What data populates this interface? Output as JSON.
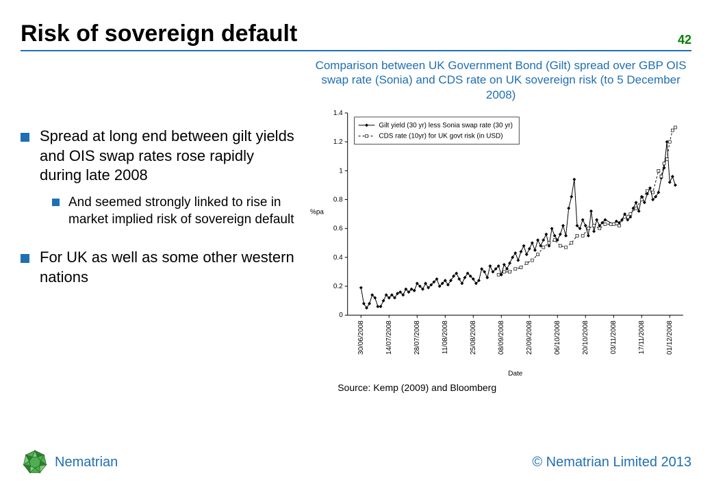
{
  "page": {
    "title": "Risk of sovereign default",
    "page_number": "42",
    "accent_color": "#1f6fb2",
    "pagenum_color": "#008000",
    "rule_color": "#1f6fb2",
    "brand_name": "Nematrian",
    "brand_color": "#1f6fb2",
    "copyright": "© Nematrian Limited 2013",
    "copyright_color": "#1f6fb2",
    "logo_colors": {
      "light": "#7fc97f",
      "mid": "#4caf50",
      "dark": "#2e7d32",
      "edge": "#1b5e20"
    }
  },
  "bullets": [
    {
      "text": "Spread at long end between gilt yields and OIS swap rates rose rapidly during late 2008",
      "sub": [
        {
          "text": "And seemed strongly linked to rise in market implied risk of sovereign default"
        }
      ]
    },
    {
      "text": "For UK as well as some other western nations",
      "sub": []
    }
  ],
  "chart": {
    "type": "line",
    "title": "Comparison between UK Government Bond (Gilt) spread over GBP OIS swap rate (Sonia) and CDS rate on UK sovereign risk (to 5 December 2008)",
    "title_color": "#1f6fb2",
    "title_fontsize": 17,
    "xlabel": "Date",
    "ylabel": "%pa",
    "label_fontsize": 10,
    "background_color": "#ffffff",
    "axis_color": "#000000",
    "ylim": [
      0,
      1.4
    ],
    "ytick_step": 0.2,
    "yticks": [
      0,
      0.2,
      0.4,
      0.6,
      0.8,
      1,
      1.2,
      1.4
    ],
    "x_categories": [
      "30/06/2008",
      "14/07/2008",
      "28/07/2008",
      "11/08/2008",
      "25/08/2008",
      "08/09/2008",
      "22/09/2008",
      "06/10/2008",
      "20/10/2008",
      "03/11/2008",
      "17/11/2008",
      "01/12/2008"
    ],
    "legend": {
      "position": "top-left-inside",
      "border_color": "#000000",
      "bg_color": "#ffffff"
    },
    "series": [
      {
        "name": "Gilt yield (30 yr) less Sonia swap rate (30 yr)",
        "color": "#000000",
        "marker": "diamond",
        "marker_fill": "#000000",
        "marker_size": 4,
        "line_style": "solid",
        "line_width": 1,
        "data": [
          [
            0.0,
            0.19
          ],
          [
            0.1,
            0.08
          ],
          [
            0.2,
            0.05
          ],
          [
            0.3,
            0.08
          ],
          [
            0.4,
            0.14
          ],
          [
            0.5,
            0.12
          ],
          [
            0.6,
            0.06
          ],
          [
            0.7,
            0.06
          ],
          [
            0.8,
            0.1
          ],
          [
            0.9,
            0.14
          ],
          [
            1.0,
            0.12
          ],
          [
            1.1,
            0.14
          ],
          [
            1.2,
            0.12
          ],
          [
            1.3,
            0.15
          ],
          [
            1.4,
            0.16
          ],
          [
            1.5,
            0.14
          ],
          [
            1.6,
            0.18
          ],
          [
            1.7,
            0.16
          ],
          [
            1.8,
            0.18
          ],
          [
            1.9,
            0.17
          ],
          [
            2.0,
            0.22
          ],
          [
            2.1,
            0.2
          ],
          [
            2.2,
            0.18
          ],
          [
            2.3,
            0.22
          ],
          [
            2.4,
            0.19
          ],
          [
            2.5,
            0.21
          ],
          [
            2.6,
            0.23
          ],
          [
            2.7,
            0.25
          ],
          [
            2.8,
            0.2
          ],
          [
            2.9,
            0.22
          ],
          [
            3.0,
            0.24
          ],
          [
            3.1,
            0.21
          ],
          [
            3.2,
            0.24
          ],
          [
            3.3,
            0.27
          ],
          [
            3.4,
            0.29
          ],
          [
            3.5,
            0.25
          ],
          [
            3.6,
            0.22
          ],
          [
            3.7,
            0.26
          ],
          [
            3.8,
            0.29
          ],
          [
            3.9,
            0.27
          ],
          [
            4.0,
            0.25
          ],
          [
            4.1,
            0.22
          ],
          [
            4.2,
            0.24
          ],
          [
            4.3,
            0.32
          ],
          [
            4.4,
            0.3
          ],
          [
            4.5,
            0.26
          ],
          [
            4.6,
            0.34
          ],
          [
            4.7,
            0.3
          ],
          [
            4.8,
            0.32
          ],
          [
            4.9,
            0.34
          ],
          [
            5.0,
            0.28
          ],
          [
            5.1,
            0.35
          ],
          [
            5.2,
            0.32
          ],
          [
            5.3,
            0.36
          ],
          [
            5.4,
            0.4
          ],
          [
            5.5,
            0.43
          ],
          [
            5.6,
            0.38
          ],
          [
            5.7,
            0.44
          ],
          [
            5.8,
            0.48
          ],
          [
            5.9,
            0.42
          ],
          [
            6.0,
            0.46
          ],
          [
            6.1,
            0.5
          ],
          [
            6.2,
            0.45
          ],
          [
            6.3,
            0.52
          ],
          [
            6.4,
            0.48
          ],
          [
            6.5,
            0.52
          ],
          [
            6.6,
            0.56
          ],
          [
            6.7,
            0.48
          ],
          [
            6.8,
            0.6
          ],
          [
            6.9,
            0.55
          ],
          [
            7.0,
            0.52
          ],
          [
            7.1,
            0.56
          ],
          [
            7.2,
            0.62
          ],
          [
            7.3,
            0.55
          ],
          [
            7.4,
            0.74
          ],
          [
            7.5,
            0.82
          ],
          [
            7.6,
            0.94
          ],
          [
            7.7,
            0.62
          ],
          [
            7.8,
            0.6
          ],
          [
            7.9,
            0.66
          ],
          [
            8.0,
            0.62
          ],
          [
            8.1,
            0.55
          ],
          [
            8.2,
            0.72
          ],
          [
            8.3,
            0.58
          ],
          [
            8.4,
            0.66
          ],
          [
            8.5,
            0.62
          ],
          [
            8.6,
            0.64
          ],
          [
            8.7,
            0.66
          ],
          [
            9.0,
            0.63
          ],
          [
            9.1,
            0.65
          ],
          [
            9.2,
            0.64
          ],
          [
            9.3,
            0.66
          ],
          [
            9.4,
            0.7
          ],
          [
            9.5,
            0.66
          ],
          [
            9.6,
            0.68
          ],
          [
            9.7,
            0.74
          ],
          [
            9.8,
            0.78
          ],
          [
            9.9,
            0.72
          ],
          [
            10.0,
            0.82
          ],
          [
            10.1,
            0.78
          ],
          [
            10.2,
            0.84
          ],
          [
            10.3,
            0.88
          ],
          [
            10.4,
            0.8
          ],
          [
            10.5,
            0.82
          ],
          [
            10.6,
            0.85
          ],
          [
            10.7,
            0.95
          ],
          [
            10.8,
            1.02
          ],
          [
            10.9,
            1.2
          ],
          [
            11.0,
            0.92
          ],
          [
            11.1,
            0.96
          ],
          [
            11.2,
            0.9
          ]
        ]
      },
      {
        "name": "CDS rate (10yr) for UK govt risk (in USD)",
        "color": "#000000",
        "marker": "square",
        "marker_fill": "#ffffff",
        "marker_size": 4,
        "line_style": "dashed",
        "line_width": 1,
        "data": [
          [
            4.9,
            0.28
          ],
          [
            5.1,
            0.3
          ],
          [
            5.3,
            0.3
          ],
          [
            5.5,
            0.32
          ],
          [
            5.7,
            0.33
          ],
          [
            5.9,
            0.36
          ],
          [
            6.1,
            0.38
          ],
          [
            6.3,
            0.42
          ],
          [
            6.5,
            0.47
          ],
          [
            6.7,
            0.5
          ],
          [
            6.9,
            0.52
          ],
          [
            7.1,
            0.48
          ],
          [
            7.3,
            0.47
          ],
          [
            7.5,
            0.5
          ],
          [
            7.7,
            0.55
          ],
          [
            7.9,
            0.55
          ],
          [
            8.1,
            0.6
          ],
          [
            8.3,
            0.62
          ],
          [
            8.5,
            0.6
          ],
          [
            8.7,
            0.63
          ],
          [
            8.9,
            0.63
          ],
          [
            9.0,
            0.63
          ],
          [
            9.2,
            0.62
          ],
          [
            9.4,
            0.68
          ],
          [
            9.6,
            0.7
          ],
          [
            9.8,
            0.74
          ],
          [
            10.0,
            0.8
          ],
          [
            10.2,
            0.86
          ],
          [
            10.4,
            0.85
          ],
          [
            10.6,
            1.0
          ],
          [
            10.7,
            0.96
          ],
          [
            10.8,
            1.05
          ],
          [
            10.9,
            1.08
          ],
          [
            11.0,
            1.2
          ],
          [
            11.1,
            1.28
          ],
          [
            11.2,
            1.3
          ]
        ]
      }
    ],
    "source": "Source: Kemp (2009) and Bloomberg"
  }
}
